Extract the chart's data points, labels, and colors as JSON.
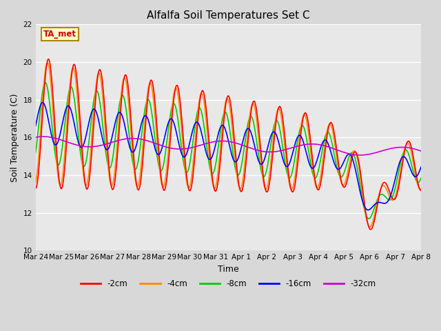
{
  "title": "Alfalfa Soil Temperatures Set C",
  "xlabel": "Time",
  "ylabel": "Soil Temperature (C)",
  "ylim": [
    10,
    22
  ],
  "yticks": [
    10,
    12,
    14,
    16,
    18,
    20,
    22
  ],
  "fig_bg_color": "#d8d8d8",
  "plot_bg_color": "#e8e8e8",
  "series_colors": {
    "-2cm": "#ff0000",
    "-4cm": "#ff8800",
    "-8cm": "#00cc00",
    "-16cm": "#0000ff",
    "-32cm": "#cc00cc"
  },
  "legend_labels": [
    "-2cm",
    "-4cm",
    "-8cm",
    "-16cm",
    "-32cm"
  ],
  "annotation_text": "TA_met",
  "annotation_color": "#cc0000",
  "annotation_bg": "#ffffcc",
  "annotation_border": "#aa8800",
  "num_points": 720,
  "start_day": 0,
  "end_day": 15,
  "xtick_days": [
    0,
    1,
    2,
    3,
    4,
    5,
    6,
    7,
    8,
    9,
    10,
    11,
    12,
    13,
    14,
    15
  ],
  "xtick_labels": [
    "Mar 24",
    "Mar 25",
    "Mar 26",
    "Mar 27",
    "Mar 28",
    "Mar 29",
    "Mar 30",
    "Mar 31",
    "Apr 1",
    "Apr 2",
    "Apr 3",
    "Apr 4",
    "Apr 5",
    "Apr 6",
    "Apr 7",
    "Apr 8"
  ]
}
